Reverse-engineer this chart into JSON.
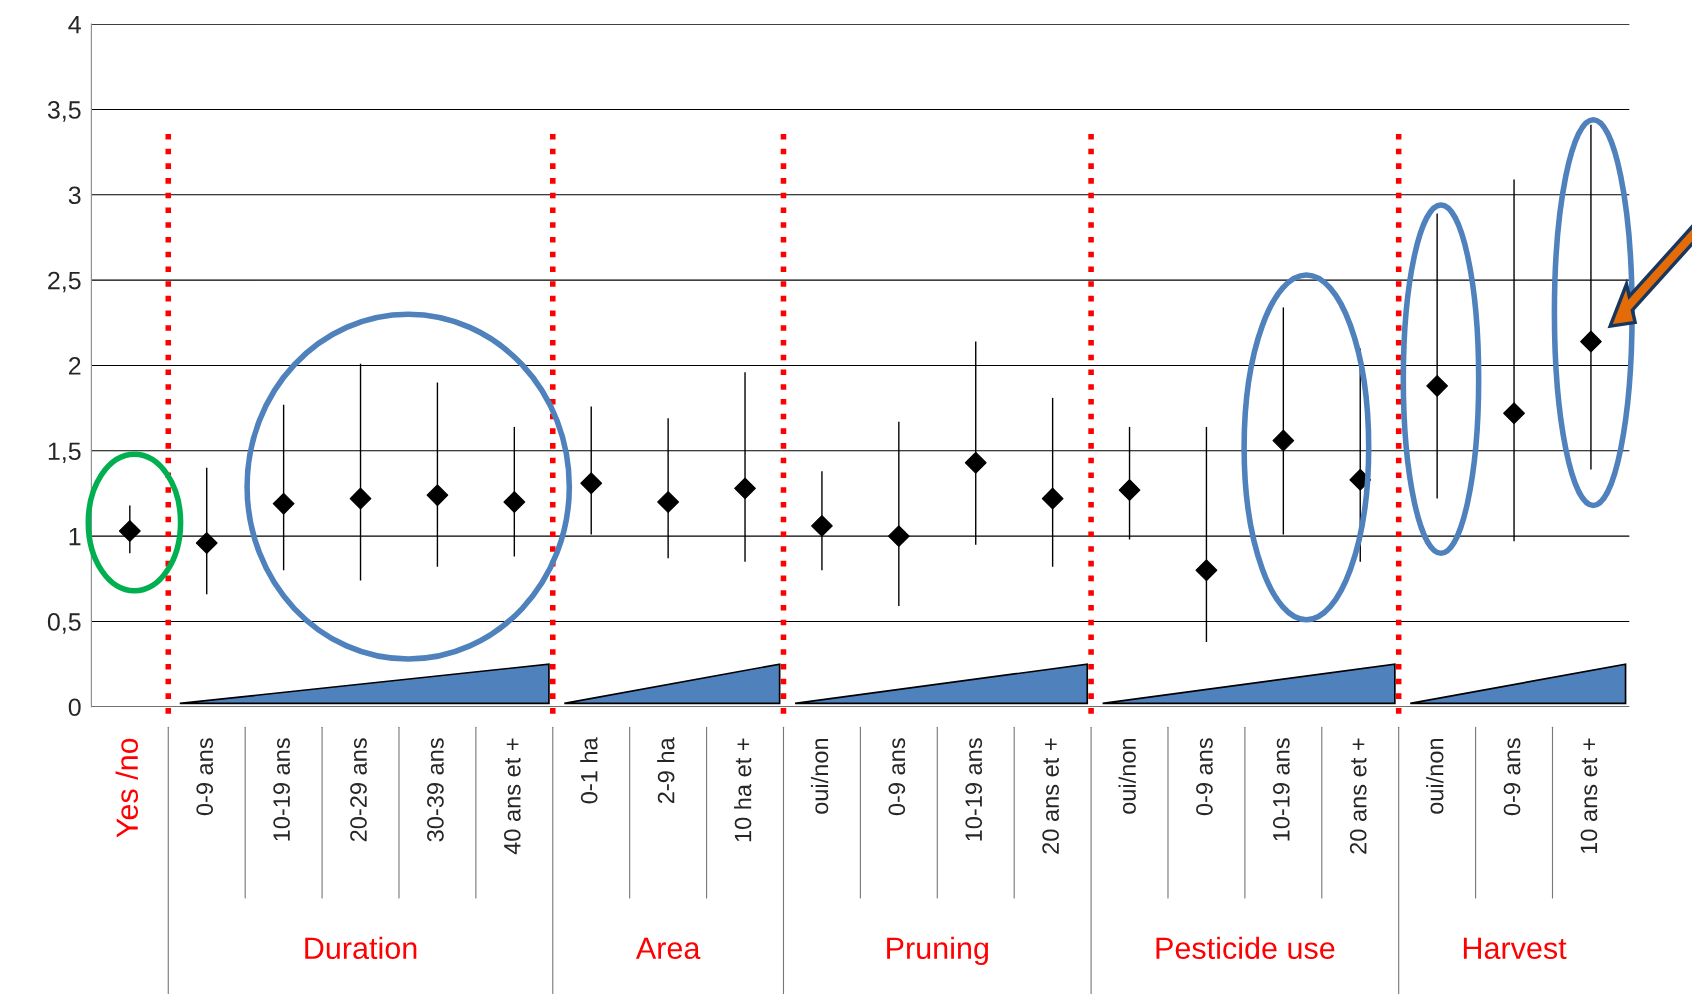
{
  "chart_data": {
    "type": "scatter",
    "marker": "diamond",
    "grid": "y",
    "categories": [
      "Yes /no",
      "0-9 ans",
      "10-19 ans",
      "20-29 ans",
      "30-39 ans",
      "40 ans et +",
      "0-1 ha",
      "2-9 ha",
      "10 ha et +",
      "oui/non",
      "0-9 ans",
      "10-19 ans",
      "20 ans et +",
      "oui/non",
      "0-9 ans",
      "10-19 ans",
      "20 ans et +",
      "oui/non",
      "0-9 ans",
      "10 ans et +"
    ],
    "series": [
      {
        "color": "#000000",
        "values": [
          1.03,
          0.96,
          1.19,
          1.22,
          1.24,
          1.2,
          1.31,
          1.2,
          1.28,
          1.06,
          1.0,
          1.43,
          1.22,
          1.27,
          0.8,
          1.56,
          1.33,
          1.88,
          1.72,
          2.14
        ],
        "errors": [
          [
            0.9,
            1.18
          ],
          [
            0.66,
            1.4
          ],
          [
            0.8,
            1.77
          ],
          [
            0.74,
            2.01
          ],
          [
            0.82,
            1.9
          ],
          [
            0.88,
            1.64
          ],
          [
            1.01,
            1.76
          ],
          [
            0.87,
            1.69
          ],
          [
            0.85,
            1.96
          ],
          [
            0.8,
            1.38
          ],
          [
            0.59,
            1.67
          ],
          [
            0.95,
            2.14
          ],
          [
            0.82,
            1.81
          ],
          [
            0.98,
            1.64
          ],
          [
            0.38,
            1.64
          ],
          [
            1.01,
            2.34
          ],
          [
            0.85,
            2.1
          ],
          [
            1.22,
            2.89
          ],
          [
            0.97,
            3.09
          ],
          [
            1.39,
            3.41
          ]
        ]
      }
    ],
    "ylim": [
      0,
      4
    ],
    "yticks": [
      0,
      {
        "value": 0.5,
        "label": "0,5"
      },
      1,
      {
        "value": 1.5,
        "label": "1,5"
      },
      2,
      {
        "value": 2.5,
        "label": "2,5"
      },
      3,
      {
        "value": 3.5,
        "label": "3,5"
      },
      4
    ],
    "annotations": [
      "Duration",
      "Area",
      "Pruning",
      "Pesticide use",
      "Harvest"
    ]
  }
}
